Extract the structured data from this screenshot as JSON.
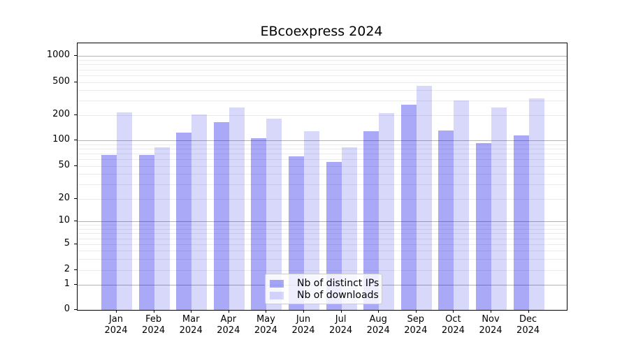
{
  "figure_title": "EBcoexpress 2024",
  "chart_data": {
    "type": "bar",
    "title": "EBcoexpress 2024",
    "xlabel": "",
    "ylabel": "",
    "categories": [
      "Jan",
      "Feb",
      "Mar",
      "Apr",
      "May",
      "Jun",
      "Jul",
      "Aug",
      "Sep",
      "Oct",
      "Nov",
      "Dec"
    ],
    "year_label": "2024",
    "series": [
      {
        "name": "Nb of distinct IPs",
        "color": "rgba(8,8,232,0.35)",
        "values": [
          68,
          68,
          125,
          164,
          107,
          65,
          56,
          129,
          268,
          132,
          93,
          115
        ]
      },
      {
        "name": "Nb of downloads",
        "color": "rgba(8,8,232,0.155)",
        "values": [
          218,
          84,
          205,
          247,
          183,
          130,
          84,
          211,
          455,
          300,
          250,
          320
        ]
      }
    ],
    "yscale": "symlog",
    "yticks": [
      0,
      1,
      2,
      5,
      10,
      20,
      50,
      100,
      200,
      500,
      1000
    ],
    "ylim": [
      0,
      1200
    ],
    "grid": "horizontal, logarithmic minor lines, decade lines emphasized",
    "legend_position": "lower center",
    "colors": {
      "bar_distinct_ips_apparent": "#a6a6f4",
      "bar_downloads_apparent": "#dadaf8",
      "grid_major": "#b3b3b3",
      "grid_minor": "#ebebeb",
      "axis": "#000000"
    }
  }
}
